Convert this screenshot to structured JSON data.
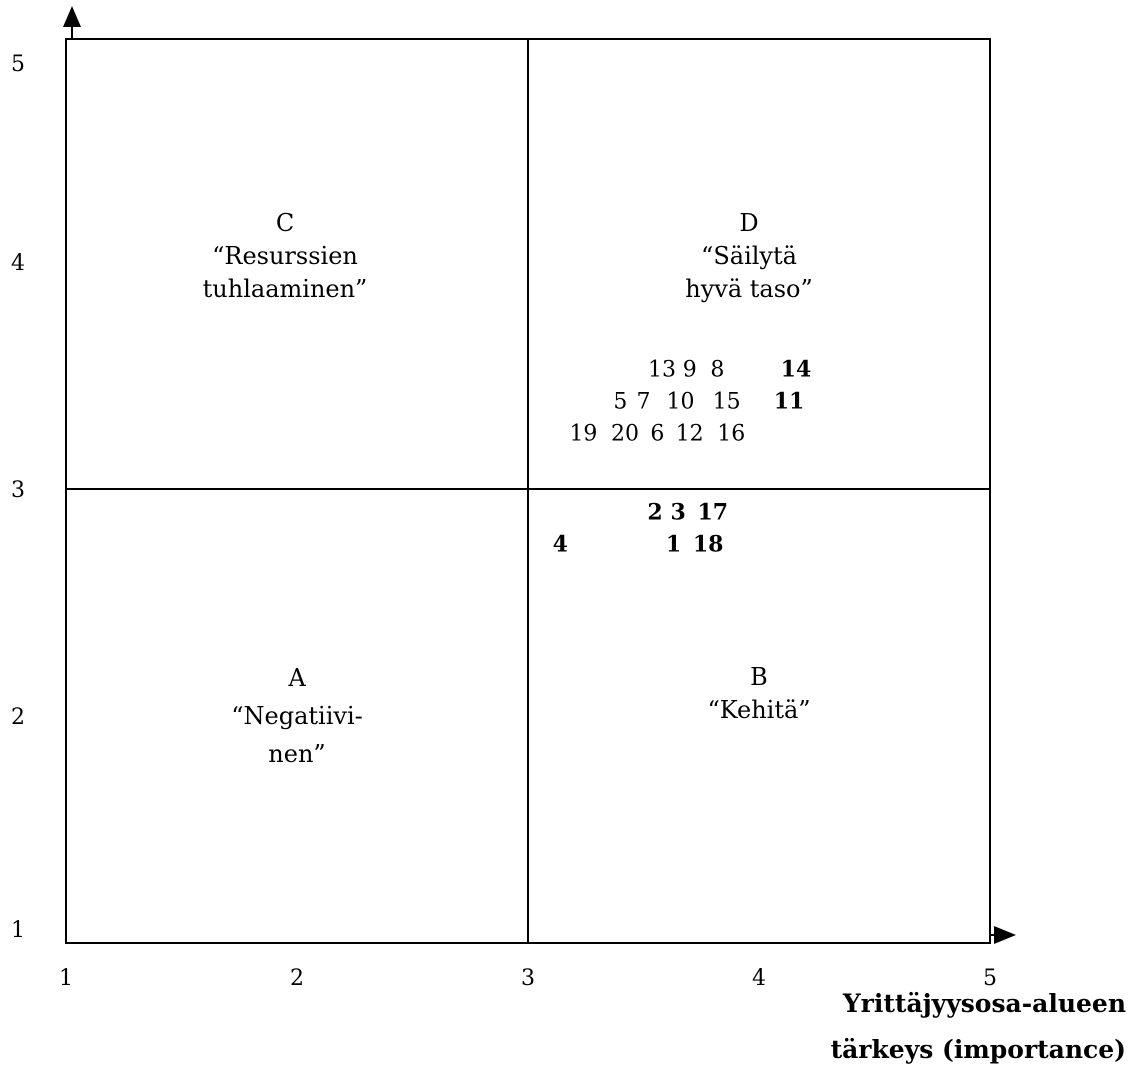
{
  "chart_data": {
    "type": "scatter",
    "title": "",
    "xlabel": "Yrittäjyysosa-alueen tärkeys (importance)",
    "xlabel_lines": [
      "Yrittäjyysosa-alueen",
      "tärkeys (importance)"
    ],
    "ylabel": "",
    "xlim": [
      1,
      5.1
    ],
    "ylim": [
      1,
      5.1
    ],
    "x_ticks": [
      1,
      2,
      3,
      4,
      5
    ],
    "y_ticks": [
      1,
      2,
      3,
      4,
      5
    ],
    "dividers": {
      "x": 3,
      "y": 3
    },
    "grid": false,
    "legend": "none",
    "quadrants": [
      {
        "id": "A",
        "lines": [
          "A",
          "“Negatiivi-",
          "nen”"
        ],
        "x": 2,
        "y": 2.0
      },
      {
        "id": "B",
        "lines": [
          "B",
          "“Kehitä”"
        ],
        "x": 4,
        "y": 2.1
      },
      {
        "id": "C",
        "lines": [
          "C",
          "“Resurssien",
          "tuhlaaminen”"
        ],
        "x": 2,
        "y": 4.0
      },
      {
        "id": "D",
        "lines": [
          "D",
          "“Säilytä",
          "hyvä taso”"
        ],
        "x": 4,
        "y": 4.0
      }
    ],
    "points": [
      {
        "label": "13",
        "x": 3.58,
        "y": 3.53,
        "bold": false
      },
      {
        "label": "9",
        "x": 3.7,
        "y": 3.53,
        "bold": false
      },
      {
        "label": "8",
        "x": 3.82,
        "y": 3.53,
        "bold": false
      },
      {
        "label": "14",
        "x": 4.16,
        "y": 3.53,
        "bold": true
      },
      {
        "label": "5",
        "x": 3.4,
        "y": 3.39,
        "bold": false
      },
      {
        "label": "7",
        "x": 3.5,
        "y": 3.39,
        "bold": false
      },
      {
        "label": "10",
        "x": 3.66,
        "y": 3.39,
        "bold": false
      },
      {
        "label": "15",
        "x": 3.86,
        "y": 3.39,
        "bold": false
      },
      {
        "label": "11",
        "x": 4.13,
        "y": 3.39,
        "bold": true
      },
      {
        "label": "19",
        "x": 3.24,
        "y": 3.25,
        "bold": false
      },
      {
        "label": "20",
        "x": 3.42,
        "y": 3.25,
        "bold": false
      },
      {
        "label": "6",
        "x": 3.56,
        "y": 3.25,
        "bold": false
      },
      {
        "label": "12",
        "x": 3.7,
        "y": 3.25,
        "bold": false
      },
      {
        "label": "16",
        "x": 3.88,
        "y": 3.25,
        "bold": false
      },
      {
        "label": "2",
        "x": 3.55,
        "y": 2.9,
        "bold": true
      },
      {
        "label": "3",
        "x": 3.65,
        "y": 2.9,
        "bold": true
      },
      {
        "label": "17",
        "x": 3.8,
        "y": 2.9,
        "bold": true
      },
      {
        "label": "4",
        "x": 3.14,
        "y": 2.76,
        "bold": true
      },
      {
        "label": "1",
        "x": 3.63,
        "y": 2.76,
        "bold": true
      },
      {
        "label": "18",
        "x": 3.78,
        "y": 2.76,
        "bold": true
      }
    ]
  }
}
